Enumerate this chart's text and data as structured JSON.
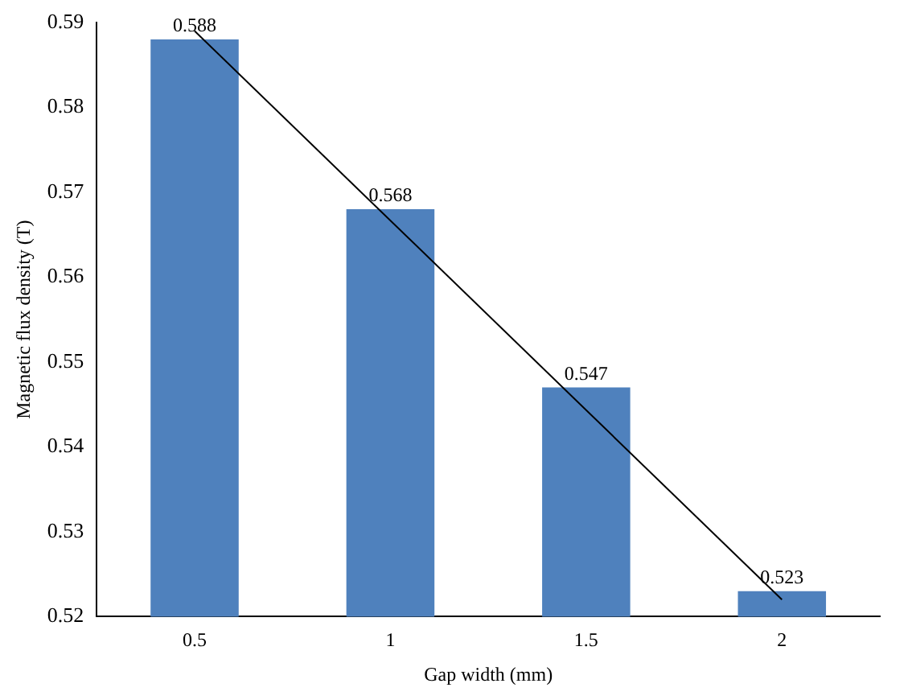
{
  "chart_data": {
    "type": "bar",
    "xlabel": "Gap width (mm)",
    "ylabel": "Magnetic flux density (T)",
    "categories": [
      "0.5",
      "1",
      "1.5",
      "2"
    ],
    "series": [
      {
        "color": "#4f81bd",
        "values": [
          0.588,
          0.568,
          0.547,
          0.523
        ],
        "value_labels": [
          "0.588",
          "0.568",
          "0.547",
          "0.523"
        ]
      },
      {
        "type": "line",
        "color": "#000000",
        "x": [
          "0.5",
          "2"
        ],
        "values": [
          0.589,
          0.522
        ]
      }
    ],
    "ylim": [
      0.52,
      0.59
    ],
    "yticks": [
      0.52,
      0.53,
      0.54,
      0.55,
      0.56,
      0.57,
      0.58,
      0.59
    ],
    "grid": false,
    "legend": false,
    "marker": "none"
  }
}
